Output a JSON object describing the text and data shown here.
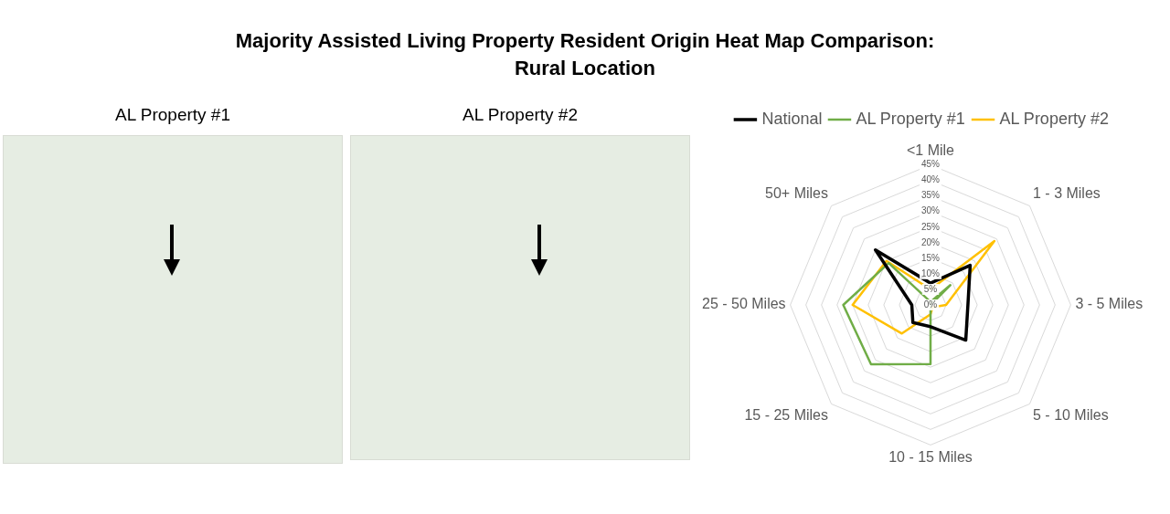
{
  "chart_data": {
    "type": "radar",
    "title": "Majority Assisted Living Property Resident Origin Heat Map Comparison: Rural Location",
    "annotations": [
      "AL Property #1",
      "AL Property #2"
    ],
    "categories": [
      "<1 Mile",
      "1 - 3 Miles",
      "3 - 5 Miles",
      "5 - 10 Miles",
      "10 - 15 Miles",
      "15 - 25 Miles",
      "25 - 50 Miles",
      "50+ Miles"
    ],
    "series": [
      {
        "name": "National",
        "color": "#000000",
        "values": [
          7,
          18,
          12,
          16,
          7,
          8,
          6,
          25
        ]
      },
      {
        "name": "AL Property #1",
        "color": "#70ad47",
        "values": [
          1,
          9,
          0,
          0,
          19,
          27,
          28,
          19
        ]
      },
      {
        "name": "AL Property #2",
        "color": "#ffc000",
        "values": [
          5,
          29,
          5,
          1,
          3,
          13,
          25,
          20
        ]
      }
    ],
    "ylim": [
      0,
      45
    ],
    "yticks": [
      {
        "value": 0,
        "label": "0%"
      },
      {
        "value": 5,
        "label": "5%"
      },
      {
        "value": 10,
        "label": "10%"
      },
      {
        "value": 15,
        "label": "15%"
      },
      {
        "value": 20,
        "label": "20%"
      },
      {
        "value": 25,
        "label": "25%"
      },
      {
        "value": 30,
        "label": "30%"
      },
      {
        "value": 35,
        "label": "35%"
      },
      {
        "value": 40,
        "label": "40%"
      },
      {
        "value": 45,
        "label": "45%"
      }
    ],
    "grid": true,
    "legend": "top",
    "marker": "none"
  }
}
